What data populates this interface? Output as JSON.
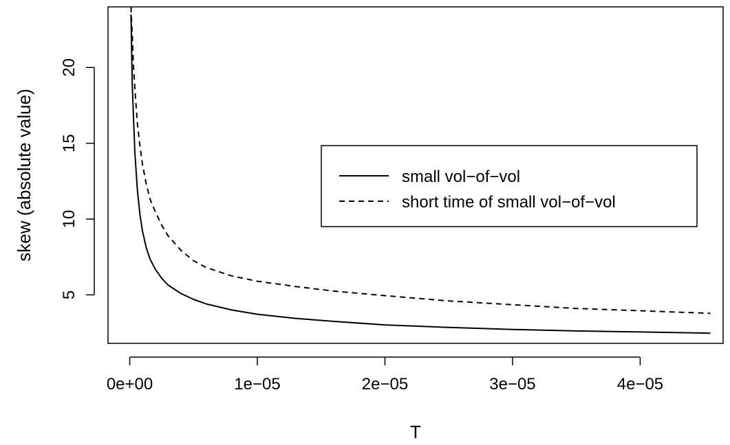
{
  "chart_data": {
    "type": "line",
    "title": "",
    "xlabel": "T",
    "ylabel": "skew (absolute value)",
    "xlim": [
      -1.7e-06,
      4.65e-05
    ],
    "ylim": [
      1.8,
      24
    ],
    "x_ticks": [
      0,
      1e-05,
      2e-05,
      3e-05,
      4e-05
    ],
    "x_tick_labels": [
      "0e+00",
      "1e−05",
      "2e−05",
      "3e−05",
      "4e−05"
    ],
    "y_ticks": [
      5,
      10,
      15,
      20
    ],
    "y_tick_labels": [
      "5",
      "10",
      "15",
      "20"
    ],
    "grid": false,
    "legend_position": "right",
    "series": [
      {
        "name": "small vol−of−vol",
        "line_style": "solid",
        "color": "#000000",
        "x": [
          1e-07,
          2e-07,
          4e-07,
          6e-07,
          8e-07,
          1e-06,
          1.3e-06,
          1.6e-06,
          2e-06,
          2.5e-06,
          3e-06,
          4e-06,
          5e-06,
          6e-06,
          8e-06,
          1e-05,
          1.3e-05,
          1.6e-05,
          2e-05,
          2.5e-05,
          3e-05,
          3.5e-05,
          4e-05,
          4.55e-05
        ],
        "y": [
          23.5,
          18.9,
          14.4,
          11.9,
          10.3,
          9.2,
          8.1,
          7.35,
          6.7,
          6.1,
          5.65,
          5.1,
          4.7,
          4.4,
          4.0,
          3.72,
          3.45,
          3.25,
          3.02,
          2.85,
          2.72,
          2.62,
          2.55,
          2.47
        ]
      },
      {
        "name": "short time of small vol−of−vol",
        "line_style": "dashed",
        "color": "#000000",
        "x": [
          1e-07,
          1.5e-07,
          2e-07,
          3e-07,
          4e-07,
          6e-07,
          8e-07,
          1e-06,
          1.3e-06,
          1.6e-06,
          2e-06,
          2.5e-06,
          3e-06,
          4e-06,
          5e-06,
          6e-06,
          8e-06,
          1e-05,
          1.3e-05,
          1.6e-05,
          2e-05,
          2.5e-05,
          3e-05,
          3.5e-05,
          4e-05,
          4.55e-05
        ],
        "y": [
          24.0,
          23.0,
          22.2,
          20.0,
          18.6,
          16.3,
          14.8,
          13.6,
          12.3,
          11.3,
          10.5,
          9.6,
          8.9,
          7.95,
          7.25,
          6.8,
          6.25,
          5.9,
          5.55,
          5.25,
          4.95,
          4.6,
          4.35,
          4.1,
          3.95,
          3.78
        ]
      }
    ]
  }
}
